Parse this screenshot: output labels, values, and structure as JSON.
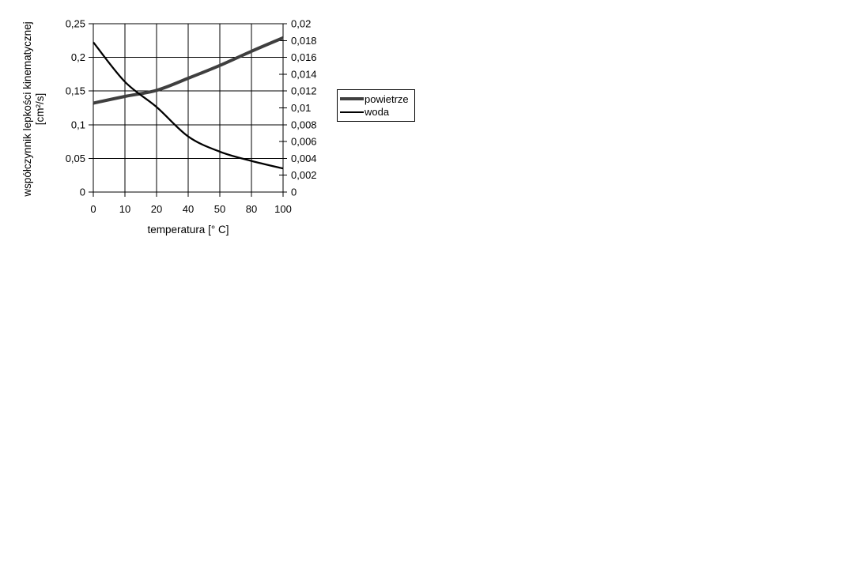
{
  "chart_data": {
    "type": "line",
    "categories": [
      "0",
      "10",
      "20",
      "40",
      "50",
      "80",
      "100"
    ],
    "series": [
      {
        "name": "powietrze",
        "axis": "left",
        "values": [
          0.132,
          0.142,
          0.151,
          0.169,
          0.188,
          0.209,
          0.229
        ],
        "color": "#3f3f3f",
        "width": 4
      },
      {
        "name": "woda",
        "axis": "right",
        "values": [
          0.0178,
          0.0131,
          0.0101,
          0.0066,
          0.0048,
          0.0037,
          0.0028
        ],
        "color": "#000000",
        "width": 2.25
      }
    ],
    "left_axis": {
      "ticks": [
        "0,25",
        "0,2",
        "0,15",
        "0,1",
        "0,05",
        "0"
      ],
      "values": [
        0.25,
        0.2,
        0.15,
        0.1,
        0.05,
        0
      ],
      "range": [
        0,
        0.25
      ]
    },
    "right_axis": {
      "ticks": [
        "0,02",
        "0,018",
        "0,016",
        "0,014",
        "0,012",
        "0,01",
        "0,008",
        "0,006",
        "0,004",
        "0,002",
        "0"
      ],
      "values": [
        0.02,
        0.018,
        0.016,
        0.014,
        0.012,
        0.01,
        0.008,
        0.006,
        0.004,
        0.002,
        0
      ],
      "range": [
        0,
        0.02
      ]
    },
    "x_axis_label": "temperatura [° C]",
    "y_axis_label_line1": "współczynnik lepkości kinematycznej",
    "y_axis_label_line2": "[cm²/s]",
    "grid": true,
    "legend_position": "right",
    "grid_color": "#000000",
    "background_color": "#ffffff"
  }
}
